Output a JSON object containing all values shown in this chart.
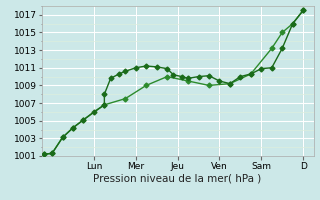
{
  "xlabel": "Pression niveau de la mer( hPa )",
  "bg_color": "#cce8e8",
  "grid_major_color": "#aacccc",
  "grid_minor_color": "#bbdddd",
  "line_color": "#1a6b1a",
  "line_color2": "#2d8b2d",
  "ylim": [
    1001,
    1018
  ],
  "xlim": [
    0,
    13.0
  ],
  "yticks_major": [
    1001,
    1003,
    1005,
    1007,
    1009,
    1011,
    1013,
    1015,
    1017
  ],
  "day_labels": [
    "Lun",
    "Mer",
    "Jeu",
    "Ven",
    "Sam",
    "D"
  ],
  "day_positions": [
    2.5,
    4.5,
    6.5,
    8.5,
    10.5,
    12.5
  ],
  "series1_x": [
    0.1,
    0.5,
    1.0,
    1.5,
    2.0,
    2.5,
    3.0,
    3.0,
    3.3,
    3.7,
    4.0,
    4.5,
    5.0,
    5.5,
    6.0,
    6.3,
    6.7,
    7.0,
    7.5,
    8.0,
    8.5,
    9.0,
    9.5,
    10.0,
    10.5,
    11.0,
    11.5,
    12.0,
    12.5
  ],
  "series1_y": [
    1001.2,
    1001.3,
    1003.1,
    1004.2,
    1005.1,
    1006.0,
    1006.8,
    1008.0,
    1009.8,
    1010.3,
    1010.6,
    1011.0,
    1011.2,
    1011.1,
    1010.9,
    1010.2,
    1010.0,
    1009.8,
    1010.0,
    1010.1,
    1009.5,
    1009.2,
    1010.0,
    1010.3,
    1010.9,
    1011.0,
    1013.2,
    1016.0,
    1017.5
  ],
  "series2_x": [
    0.1,
    0.5,
    1.0,
    1.5,
    2.0,
    3.0,
    4.0,
    5.0,
    6.0,
    7.0,
    8.0,
    9.0,
    10.0,
    11.0,
    11.5,
    12.0,
    12.5
  ],
  "series2_y": [
    1001.2,
    1001.3,
    1003.1,
    1004.2,
    1005.1,
    1006.8,
    1007.5,
    1009.0,
    1010.0,
    1009.5,
    1009.0,
    1009.2,
    1010.3,
    1013.2,
    1015.0,
    1016.0,
    1017.5
  ],
  "marker": "D",
  "marker_size": 2.5,
  "line_width": 1.0,
  "font_size": 7.5,
  "tick_font_size": 6.5
}
